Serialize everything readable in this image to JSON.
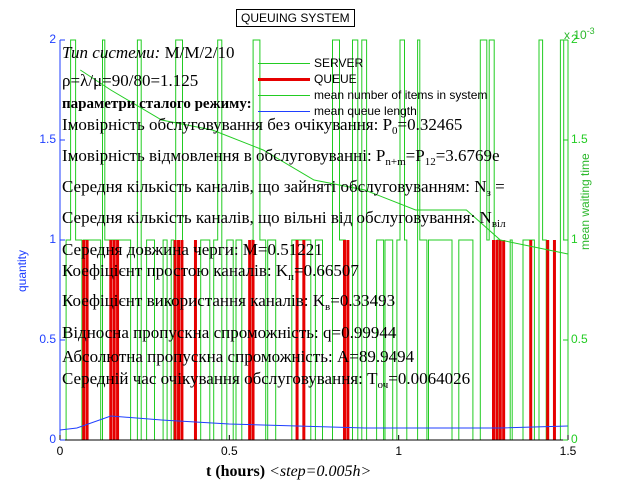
{
  "title": "QUEUING SYSTEM",
  "right_scale": "x 10",
  "right_scale_exp": "-3",
  "ylabel_left": "quantity",
  "ylabel_right": "mean waiting time",
  "xlabel_bold": "t (hours)",
  "xlabel_step": "<step=0.005h>",
  "legend": [
    {
      "label": "SERVER",
      "color": "#22cc22"
    },
    {
      "label": "QUEUE",
      "color": "#e60000"
    },
    {
      "label": "mean number of items in system",
      "color": "#22cc22"
    },
    {
      "label": "mean queue length",
      "color": "#1f3fff"
    }
  ],
  "info": {
    "type_label": "Тип системи:",
    "type_value": "M/M/2/10",
    "rho": "ρ=λ/μ=90/80=1.125",
    "steady_header": "параметри сталого режиму:",
    "p0_label": "Імовірність обслуговування без очікування: P",
    "p0_sub": "0",
    "p0_value": "=0.32465",
    "pn_label": "Імовірність відмовлення в обслуговуванні: P",
    "pn_sub": "n+m",
    "pn_eq": "=P",
    "pn_sub2": "12",
    "pn_value": "=3.6769e",
    "nz_label": "Середня кількість каналів, що зайняті обслуговуванням: N",
    "nz_sub": "з",
    "nz_value": " =",
    "nv_label": "Середня кількість каналів, що вільні від обслуговування: N",
    "nv_sub": "віл",
    "m_value": "Середня довжина черги: M=0.51221",
    "kp_label": "Коефіцієнт простою каналів: K",
    "kp_sub": "п",
    "kp_value": "=0.66507",
    "kv_label": "Коефіцієнт використання каналів: K",
    "kv_sub": "в",
    "kv_value": "=0.33493",
    "q_value": "Відносна пропускна спроможність: q=0.99944",
    "a_value": "Абсолютна пропускна спроможність: A=89.9494",
    "t_label": "Середній час очікування обслуговування: T",
    "t_sub": "оч",
    "t_value": "=0.0064026"
  },
  "chart_data": {
    "type": "line",
    "xlim": [
      0,
      1.5
    ],
    "ylim_left": [
      0,
      2
    ],
    "ylim_right": [
      0,
      2
    ],
    "right_scale_factor": "x 10^-3",
    "x_ticks": [
      "0",
      "0.5",
      "1",
      "1.5"
    ],
    "y_left_ticks": [
      "0",
      "0.5",
      "1",
      "1.5",
      "2"
    ],
    "y_right_ticks": [
      "0",
      "0.5",
      "1",
      "1.5",
      "2"
    ],
    "mean_queue_length": {
      "x": [
        0,
        0.05,
        0.15,
        0.3,
        0.5,
        0.7,
        0.9,
        1.1,
        1.3,
        1.5
      ],
      "y": [
        0.05,
        0.06,
        0.12,
        0.1,
        0.08,
        0.07,
        0.06,
        0.06,
        0.06,
        0.07
      ]
    },
    "mean_waiting_time": {
      "x": [
        0.06,
        0.15,
        0.3,
        0.45,
        0.6,
        0.75,
        0.9,
        1.05,
        1.2,
        1.3,
        1.5
      ],
      "y": [
        1.85,
        1.75,
        1.6,
        1.55,
        1.45,
        1.3,
        1.25,
        1.15,
        1.15,
        1.0,
        0.93
      ]
    },
    "queue_spikes_x": [
      0.07,
      0.08,
      0.15,
      0.16,
      0.17,
      0.34,
      0.35,
      0.36,
      0.4,
      0.56,
      0.57,
      0.7,
      0.72,
      0.84,
      0.85,
      1.28,
      1.29,
      1.3,
      1.31,
      1.39,
      1.44,
      1.46
    ],
    "queue_spike_heights": [
      1,
      1,
      1,
      1,
      1,
      1,
      1,
      1,
      1,
      1,
      1,
      1,
      1,
      1,
      1,
      1,
      1,
      1,
      1,
      1,
      1,
      1
    ]
  }
}
